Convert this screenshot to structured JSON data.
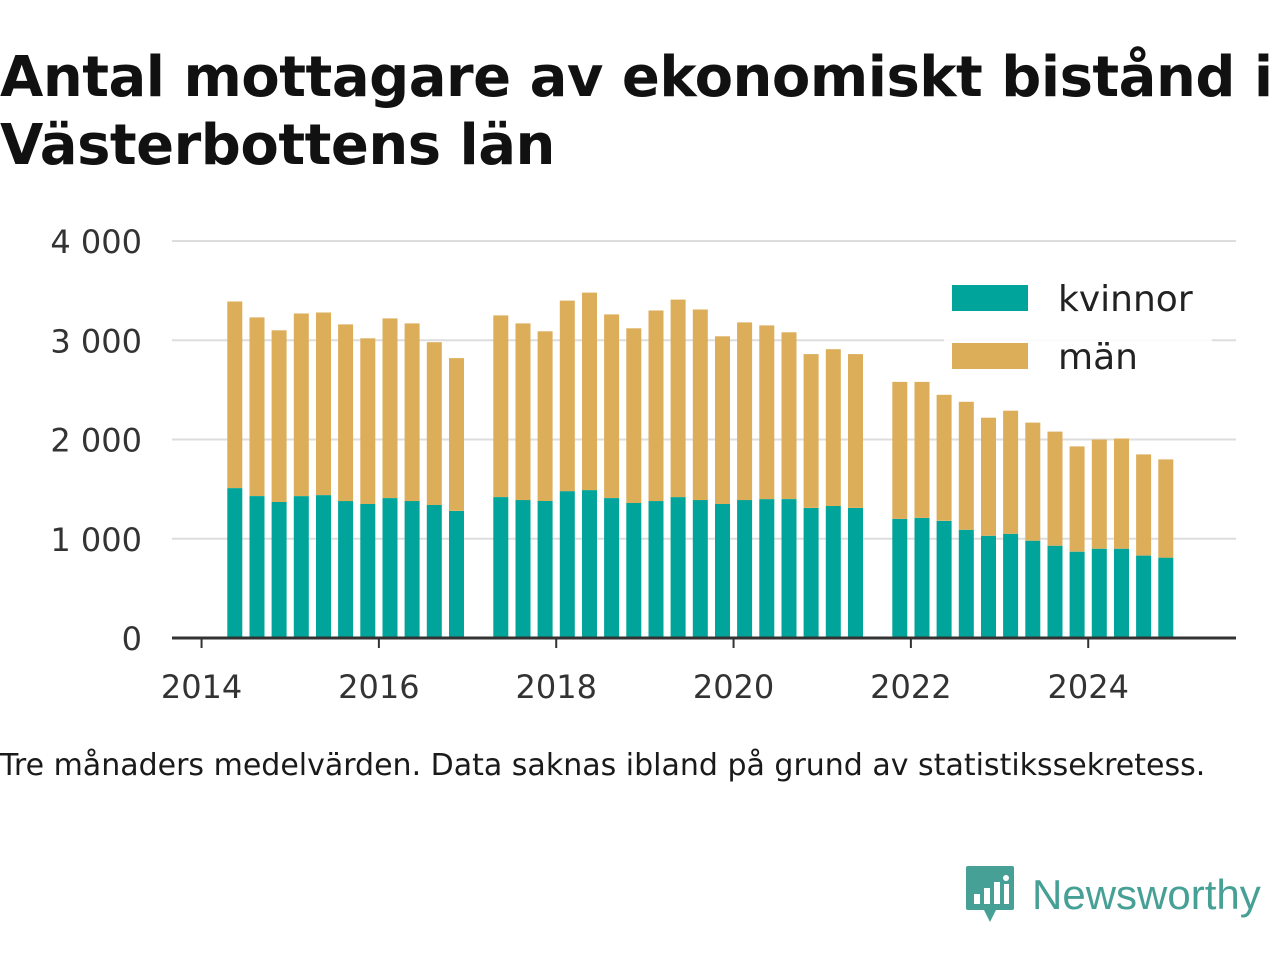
{
  "title": "Antal mottagare av ekonomiskt bistånd i Västerbottens län",
  "note": "Tre månaders medelvärden. Data saknas ibland på grund av statistikssekretess.",
  "brand": {
    "name": "Newsworthy",
    "logo_icon": "bar-chart-speech-bubble-icon"
  },
  "colors": {
    "kvinnor": "#00a49a",
    "man": "#dcae5a",
    "grid": "#dddddd",
    "axis": "#333333",
    "brand": "#47a095"
  },
  "chart_data": {
    "type": "bar",
    "stacked": true,
    "title": "Antal mottagare av ekonomiskt bistånd i Västerbottens län",
    "xlabel": "",
    "ylabel": "",
    "ylim": [
      0,
      4000
    ],
    "yticks": [
      0,
      1000,
      2000,
      3000,
      4000
    ],
    "ytick_labels": [
      "0",
      "1 000",
      "2 000",
      "3 000",
      "4 000"
    ],
    "xticks": [
      2014,
      2016,
      2018,
      2020,
      2022,
      2024
    ],
    "xlim": [
      "2013-09",
      "2025-09"
    ],
    "legend_position": "top-right",
    "grid": true,
    "x": [
      "2014-05",
      "2014-08",
      "2014-11",
      "2015-02",
      "2015-05",
      "2015-08",
      "2015-11",
      "2016-02",
      "2016-05",
      "2016-08",
      "2016-11",
      "2017-05",
      "2017-08",
      "2017-11",
      "2018-02",
      "2018-05",
      "2018-08",
      "2018-11",
      "2019-02",
      "2019-05",
      "2019-08",
      "2019-11",
      "2020-02",
      "2020-05",
      "2020-08",
      "2020-11",
      "2021-02",
      "2021-05",
      "2021-11",
      "2022-02",
      "2022-05",
      "2022-08",
      "2022-11",
      "2023-02",
      "2023-05",
      "2023-08",
      "2023-11",
      "2024-02",
      "2024-05",
      "2024-08",
      "2024-11"
    ],
    "series": [
      {
        "name": "kvinnor",
        "values": [
          1510,
          1430,
          1370,
          1430,
          1440,
          1380,
          1350,
          1410,
          1380,
          1340,
          1280,
          1420,
          1390,
          1380,
          1480,
          1490,
          1410,
          1360,
          1380,
          1420,
          1390,
          1350,
          1390,
          1400,
          1400,
          1310,
          1330,
          1310,
          1200,
          1210,
          1180,
          1090,
          1030,
          1050,
          980,
          930,
          870,
          900,
          900,
          830,
          810
        ]
      },
      {
        "name": "män",
        "values": [
          1880,
          1800,
          1730,
          1840,
          1840,
          1780,
          1670,
          1810,
          1790,
          1640,
          1540,
          1830,
          1780,
          1710,
          1920,
          1990,
          1850,
          1760,
          1920,
          1990,
          1920,
          1690,
          1790,
          1750,
          1680,
          1550,
          1580,
          1550,
          1380,
          1370,
          1270,
          1290,
          1190,
          1240,
          1190,
          1150,
          1060,
          1100,
          1110,
          1020,
          990
        ]
      }
    ]
  }
}
